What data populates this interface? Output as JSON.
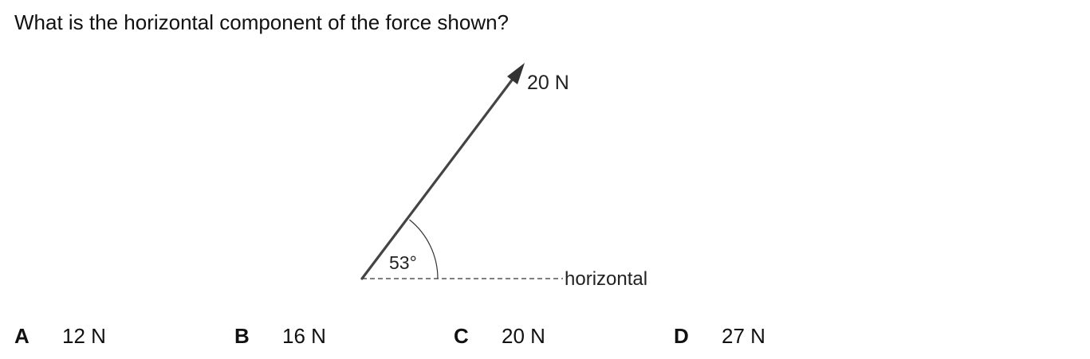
{
  "question": {
    "text": "What is the horizontal component of the force shown?"
  },
  "diagram": {
    "force_label": "20 N",
    "angle_label": "53°",
    "horizontal_label": "horizontal"
  },
  "options": [
    {
      "letter": "A",
      "value": "12 N"
    },
    {
      "letter": "B",
      "value": "16 N"
    },
    {
      "letter": "C",
      "value": "20 N"
    },
    {
      "letter": "D",
      "value": "27 N"
    }
  ]
}
